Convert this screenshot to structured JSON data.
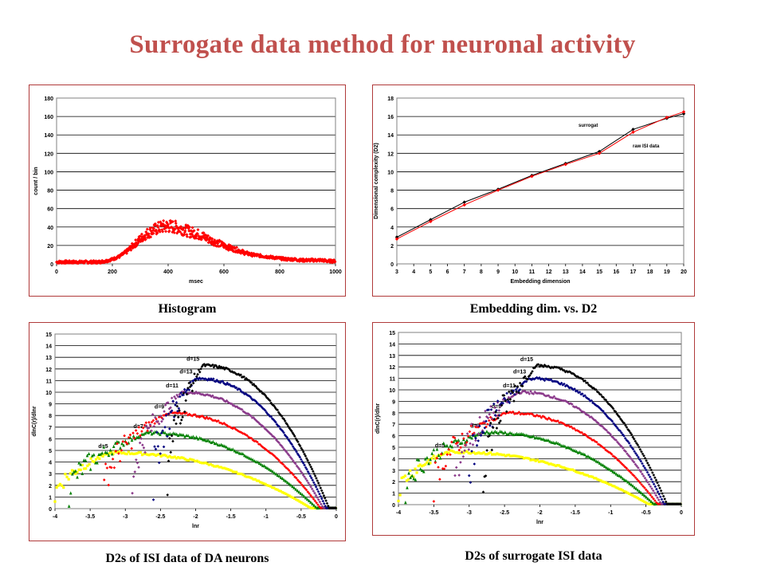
{
  "title": "Surrogate data method  for neuronal activity",
  "captions": {
    "histogram": "Histogram",
    "embedding": "Embedding dim. vs. D2",
    "da": "D2s of ISI data of DA neurons",
    "surrogate": "D2s of surrogate ISI data"
  },
  "chart_data": [
    {
      "id": "histogram",
      "type": "scatter",
      "title": "",
      "xlabel": "msec",
      "ylabel": "count / bin",
      "xlim": [
        0,
        1000
      ],
      "ylim": [
        0,
        180
      ],
      "xticks": [
        0,
        200,
        400,
        600,
        800,
        1000
      ],
      "yticks": [
        0,
        20,
        40,
        60,
        80,
        100,
        120,
        140,
        160,
        180
      ],
      "grid": true,
      "color": "#ff0000",
      "series": [
        {
          "x": [
            0,
            25,
            50,
            75,
            100,
            125,
            150,
            175,
            200,
            225,
            250,
            275,
            300,
            325,
            350,
            375,
            400,
            425,
            450,
            475,
            500,
            525,
            550,
            575,
            600,
            625,
            650,
            675,
            700,
            725,
            750,
            775,
            800,
            825,
            850,
            875,
            900,
            925,
            950,
            975,
            1000
          ],
          "y": [
            2,
            2,
            2,
            2,
            2,
            2,
            2,
            3,
            5,
            8,
            13,
            20,
            27,
            33,
            37,
            40,
            41,
            40,
            38,
            35,
            33,
            30,
            26,
            23,
            20,
            17,
            15,
            12,
            10,
            9,
            8,
            7,
            6,
            5,
            5,
            4,
            4,
            4,
            4,
            3,
            3
          ]
        }
      ]
    },
    {
      "id": "embedding",
      "type": "line",
      "title": "",
      "xlabel": "Embedding dimension",
      "ylabel": "Dimensional complexity (D2)",
      "xlim": [
        3,
        20
      ],
      "ylim": [
        0,
        18
      ],
      "xticks": [
        3,
        4,
        5,
        6,
        7,
        8,
        9,
        10,
        11,
        12,
        13,
        14,
        15,
        16,
        17,
        18,
        19,
        20
      ],
      "yticks": [
        0,
        2,
        4,
        6,
        8,
        10,
        12,
        14,
        16,
        18
      ],
      "grid": true,
      "annotations": [
        "surrogat",
        "raw ISI data"
      ],
      "series": [
        {
          "name": "surrogat",
          "color": "#000000",
          "x": [
            3,
            5,
            7,
            9,
            11,
            13,
            15,
            17,
            19,
            20
          ],
          "y": [
            2.9,
            4.8,
            6.7,
            8.1,
            9.6,
            10.9,
            12.2,
            14.6,
            15.8,
            16.3
          ]
        },
        {
          "name": "raw ISI data",
          "color": "#ff0000",
          "x": [
            3,
            5,
            7,
            9,
            11,
            13,
            15,
            17,
            19,
            20
          ],
          "y": [
            2.7,
            4.6,
            6.4,
            8.0,
            9.5,
            10.8,
            12.0,
            14.3,
            15.9,
            16.5
          ]
        }
      ]
    },
    {
      "id": "d2-da",
      "type": "scatter",
      "title": "",
      "xlabel": "lnr",
      "ylabel": "dlnC(r)/dlnr",
      "xlim": [
        -4,
        0
      ],
      "ylim": [
        0,
        15
      ],
      "xticks": [
        -4,
        -3.5,
        -3,
        -2.5,
        -2,
        -1.5,
        -1,
        -0.5,
        0
      ],
      "yticks": [
        0,
        1,
        2,
        3,
        4,
        5,
        6,
        7,
        8,
        9,
        10,
        11,
        12,
        13,
        14,
        15
      ],
      "grid": true,
      "series": [
        {
          "name": "d=5",
          "color": "#ffff00",
          "marker": "square",
          "peak": 4.8,
          "xs": -4.0,
          "xp": -3.2,
          "xe": -0.35,
          "sigma": 1.0
        },
        {
          "name": "d=7",
          "color": "#008000",
          "marker": "triangle",
          "peak": 6.5,
          "xs": -3.8,
          "xp": -2.7,
          "xe": -0.27,
          "sigma": 0.85
        },
        {
          "name": "d=9",
          "color": "#ff0000",
          "marker": "diamond",
          "peak": 8.2,
          "xs": -3.3,
          "xp": -2.4,
          "xe": -0.22,
          "sigma": 0.75
        },
        {
          "name": "d=11",
          "color": "#8b3a8b",
          "marker": "diamond",
          "peak": 10.0,
          "xs": -2.9,
          "xp": -2.2,
          "xe": -0.18,
          "sigma": 0.7
        },
        {
          "name": "d=13",
          "color": "#000080",
          "marker": "diamond",
          "peak": 11.2,
          "xs": -2.6,
          "xp": -2.0,
          "xe": -0.14,
          "sigma": 0.62
        },
        {
          "name": "d=15",
          "color": "#000000",
          "marker": "diamond",
          "peak": 12.3,
          "xs": -2.4,
          "xp": -1.9,
          "xe": -0.1,
          "sigma": 0.56
        }
      ]
    },
    {
      "id": "d2-surrogate",
      "type": "scatter",
      "title": "",
      "xlabel": "lnr",
      "ylabel": "dlnC(r)/dlnr",
      "xlim": [
        -4,
        0
      ],
      "ylim": [
        0,
        15
      ],
      "xticks": [
        -4,
        -3.5,
        -3,
        -2.5,
        -2,
        -1.5,
        -1,
        -0.5,
        0
      ],
      "yticks": [
        0,
        1,
        2,
        3,
        4,
        5,
        6,
        7,
        8,
        9,
        10,
        11,
        12,
        13,
        14,
        15
      ],
      "grid": true,
      "series": [
        {
          "name": "d=5",
          "color": "#ffff00",
          "marker": "square",
          "peak": 4.6,
          "xs": -4.0,
          "xp": -3.3,
          "xe": -0.45,
          "sigma": 1.05
        },
        {
          "name": "d=7",
          "color": "#008000",
          "marker": "triangle",
          "peak": 6.3,
          "xs": -3.9,
          "xp": -2.8,
          "xe": -0.38,
          "sigma": 0.9
        },
        {
          "name": "d=9",
          "color": "#ff0000",
          "marker": "diamond",
          "peak": 8.0,
          "xs": -3.5,
          "xp": -2.5,
          "xe": -0.33,
          "sigma": 0.78
        },
        {
          "name": "d=11",
          "color": "#8b3a8b",
          "marker": "diamond",
          "peak": 9.8,
          "xs": -3.2,
          "xp": -2.3,
          "xe": -0.28,
          "sigma": 0.72
        },
        {
          "name": "d=13",
          "color": "#000080",
          "marker": "diamond",
          "peak": 11.0,
          "xs": -3.0,
          "xp": -2.15,
          "xe": -0.24,
          "sigma": 0.65
        },
        {
          "name": "d=15",
          "color": "#000000",
          "marker": "diamond",
          "peak": 12.1,
          "xs": -2.8,
          "xp": -2.05,
          "xe": -0.2,
          "sigma": 0.6
        }
      ]
    }
  ]
}
